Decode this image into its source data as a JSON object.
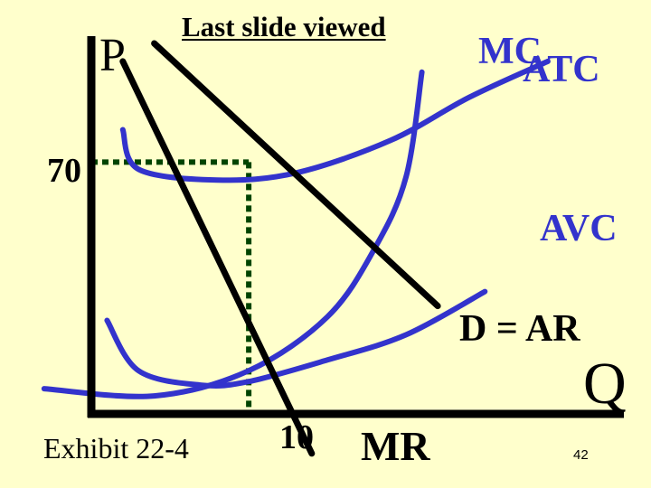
{
  "slide": {
    "last_slide_link": "Last slide viewed",
    "exhibit_label": "Exhibit 22-4",
    "page_number": "42"
  },
  "chart_data": {
    "type": "line",
    "title": "",
    "xlabel": "Q",
    "ylabel": "P",
    "xlim": [
      0,
      34
    ],
    "ylim": [
      0,
      105
    ],
    "grid": false,
    "x_ticks": [
      {
        "value": 10,
        "label": "10"
      }
    ],
    "y_ticks": [
      {
        "value": 70,
        "label": "70"
      }
    ],
    "series": [
      {
        "name": "MC",
        "color": "#3333cc",
        "points": [
          [
            -3,
            7
          ],
          [
            4,
            5
          ],
          [
            10,
            12
          ],
          [
            15,
            27
          ],
          [
            18,
            46
          ],
          [
            20,
            66
          ],
          [
            21,
            95
          ]
        ]
      },
      {
        "name": "ATC",
        "color": "#3333cc",
        "points": [
          [
            2,
            79
          ],
          [
            3,
            68
          ],
          [
            8,
            65
          ],
          [
            13,
            67
          ],
          [
            19,
            76
          ],
          [
            24,
            88
          ],
          [
            29,
            98
          ]
        ]
      },
      {
        "name": "AVC",
        "color": "#3333cc",
        "points": [
          [
            1,
            26
          ],
          [
            3,
            12
          ],
          [
            7,
            8
          ],
          [
            10,
            9
          ],
          [
            15,
            15
          ],
          [
            20,
            22
          ],
          [
            25,
            34
          ]
        ]
      },
      {
        "name": "D = AR",
        "color": "#000000",
        "points": [
          [
            4,
            103
          ],
          [
            22,
            30
          ]
        ]
      },
      {
        "name": "MR",
        "color": "#000000",
        "points": [
          [
            2,
            98
          ],
          [
            14,
            -11
          ]
        ]
      }
    ],
    "annotations": [
      {
        "type": "guide",
        "from": [
          0,
          70
        ],
        "to": [
          10,
          70
        ],
        "color": "#004400"
      },
      {
        "type": "guide",
        "from": [
          10,
          70
        ],
        "to": [
          10,
          0
        ],
        "color": "#004400"
      }
    ],
    "labels": {
      "mc": "MC",
      "atc": "ATC",
      "avc": "AVC",
      "demand": "D = AR",
      "mr": "MR"
    }
  }
}
